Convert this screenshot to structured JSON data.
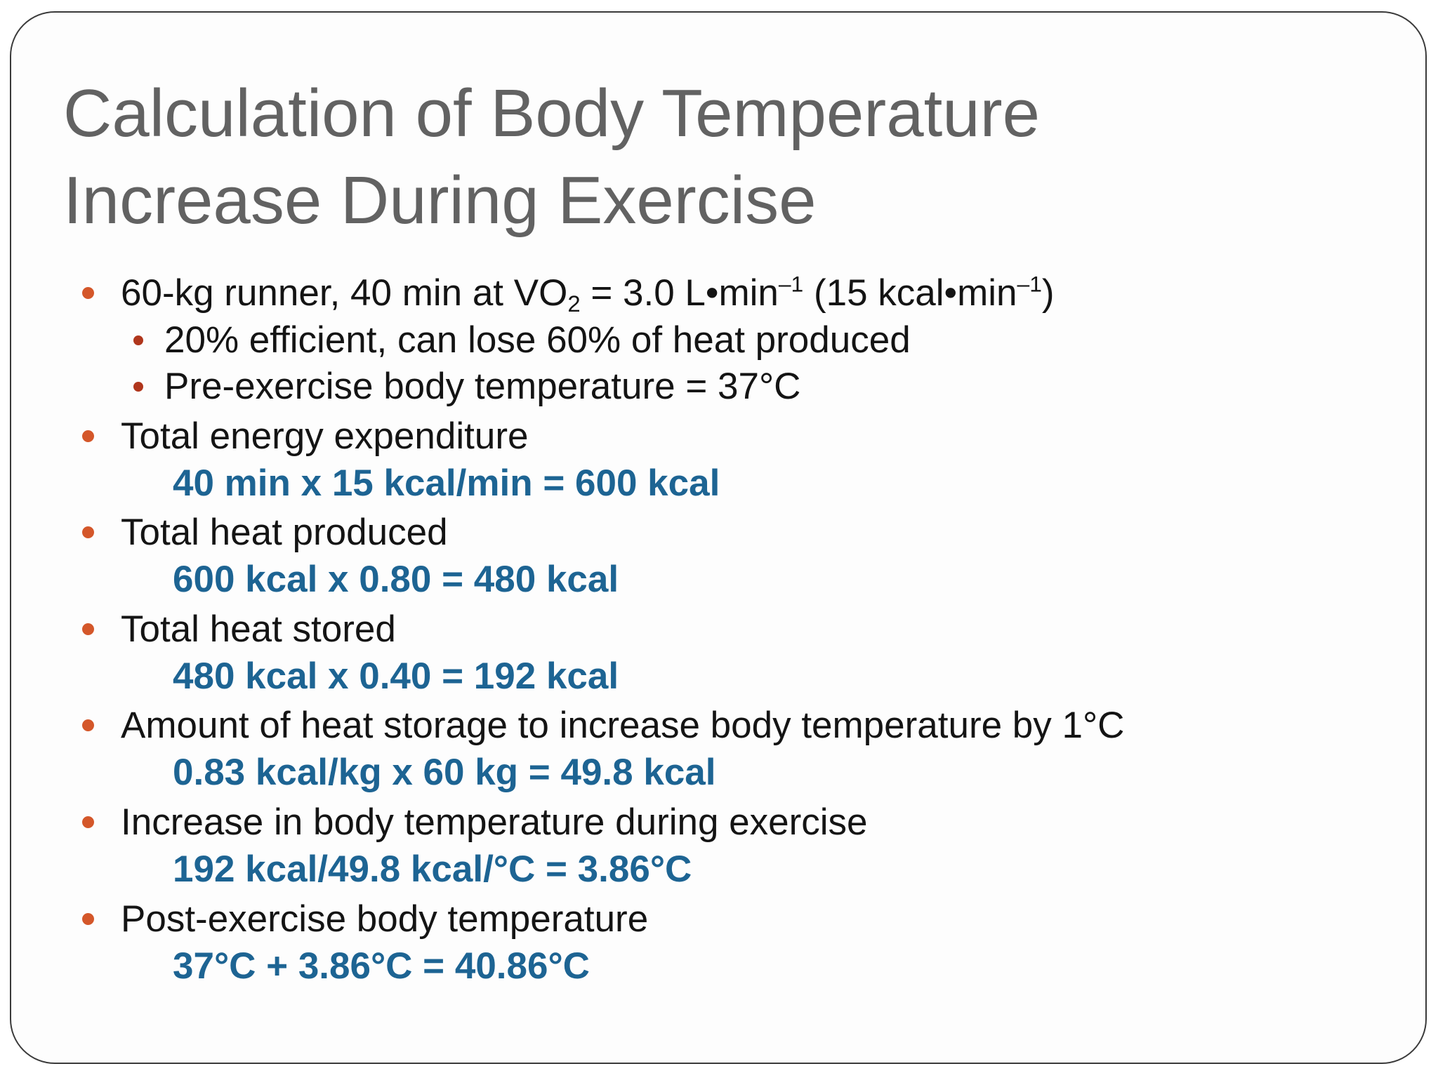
{
  "slide": {
    "title_line1": "Calculation of Body Temperature",
    "title_line2": "Increase During Exercise",
    "intro": {
      "a": "60-kg runner, 40 min at VO",
      "sub": "2",
      "b": " = 3.0 L•min",
      "sup1": "–1",
      "c": " (15 kcal•min",
      "sup2": "–1",
      "d": ")"
    },
    "sub_bullets": [
      "20% efficient, can lose 60% of heat produced",
      "Pre-exercise body temperature = 37°C"
    ],
    "steps": [
      {
        "label": "Total energy expenditure",
        "calc": "40 min x 15 kcal/min = 600 kcal"
      },
      {
        "label": "Total heat produced",
        "calc": "600 kcal x 0.80 = 480 kcal"
      },
      {
        "label": "Total heat stored",
        "calc": "480 kcal x 0.40 = 192 kcal"
      },
      {
        "label": "Amount of heat storage to increase body temperature by 1°C",
        "calc": "0.83 kcal/kg x 60 kg = 49.8 kcal"
      },
      {
        "label": "Increase in body temperature during exercise",
        "calc": "192 kcal/49.8 kcal/°C = 3.86°C"
      },
      {
        "label": "Post-exercise body temperature",
        "calc": "37°C + 3.86°C = 40.86°C"
      }
    ]
  },
  "colors": {
    "title": "#626262",
    "text": "#141414",
    "calc": "#1d6493",
    "bullet_primary": "#d4572a",
    "bullet_secondary": "#b0361c",
    "border": "#3a3a3a"
  }
}
